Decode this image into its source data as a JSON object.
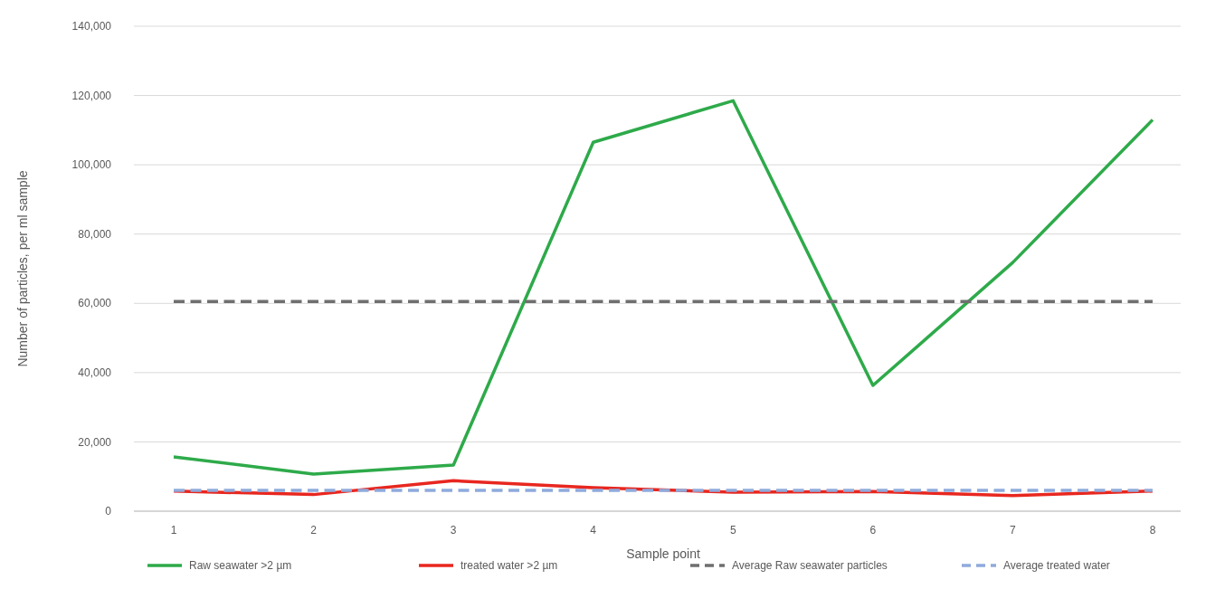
{
  "chart_data": {
    "type": "line",
    "xlabel": "Sample point",
    "ylabel": "Number of particles, per ml sample",
    "categories": [
      "1",
      "2",
      "3",
      "4",
      "5",
      "6",
      "7",
      "8"
    ],
    "series": [
      {
        "name": "Raw seawater >2 µm",
        "color": "#2eaa4a",
        "values": [
          15700,
          10700,
          13300,
          106500,
          118500,
          36300,
          71800,
          113000
        ]
      },
      {
        "name": "treated water >2 µm",
        "color": "#e8271f",
        "values": [
          5800,
          4800,
          8800,
          6800,
          5500,
          5700,
          4500,
          5800
        ]
      },
      {
        "name": "Average Raw seawater particles",
        "color": "#6f6f6f",
        "line_style": "dashed",
        "values": [
          60500,
          60500,
          60500,
          60500,
          60500,
          60500,
          60500,
          60500
        ]
      },
      {
        "name": "Average treated water",
        "color": "#8faadc",
        "line_style": "dashed",
        "values": [
          6000,
          6000,
          6000,
          6000,
          6000,
          6000,
          6000,
          6000
        ]
      }
    ],
    "ylim": [
      0,
      140000
    ],
    "yticks": [
      {
        "value": 0,
        "label": "0"
      },
      {
        "value": 20000,
        "label": "20,000"
      },
      {
        "value": 40000,
        "label": "40,000"
      },
      {
        "value": 60000,
        "label": "60,000"
      },
      {
        "value": 80000,
        "label": "80,000"
      },
      {
        "value": 100000,
        "label": "100,000"
      },
      {
        "value": 120000,
        "label": "120,000"
      },
      {
        "value": 140000,
        "label": "140,000"
      }
    ],
    "grid": "y",
    "legend": "bottom",
    "marker": "none"
  }
}
